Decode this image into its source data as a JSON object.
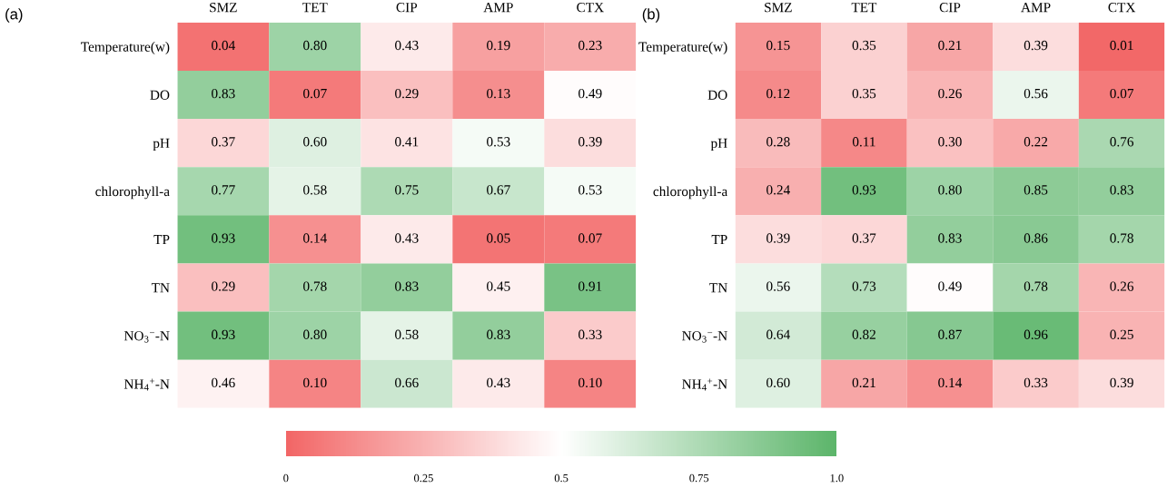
{
  "chart_data": [
    {
      "type": "heatmap",
      "title": "(a)",
      "categories": [
        "SMZ",
        "TET",
        "CIP",
        "AMP",
        "CTX"
      ],
      "y_categories": [
        "Temperature(w)",
        "DO",
        "pH",
        "chlorophyll-a",
        "TP",
        "TN",
        "NO$_{3}$$^{−}$-N",
        "NH$_{4}$$^{+}$-N"
      ],
      "cells": [
        [
          0.04,
          0.8,
          0.43,
          0.19,
          0.23
        ],
        [
          0.83,
          0.07,
          0.29,
          0.13,
          0.49
        ],
        [
          0.37,
          0.6,
          0.41,
          0.53,
          0.39
        ],
        [
          0.77,
          0.58,
          0.75,
          0.67,
          0.53
        ],
        [
          0.93,
          0.14,
          0.43,
          0.05,
          0.07
        ],
        [
          0.29,
          0.78,
          0.83,
          0.45,
          0.91
        ],
        [
          0.93,
          0.8,
          0.58,
          0.83,
          0.33
        ],
        [
          0.46,
          0.1,
          0.66,
          0.43,
          0.1
        ]
      ],
      "cell_labels": [
        [
          "0.04",
          "0.80",
          "0.43",
          "0.19",
          "0.23"
        ],
        [
          "0.83",
          "0.07",
          "0.29",
          "0.13",
          "0.49"
        ],
        [
          "0.37",
          "0.60",
          "0.41",
          "0.53",
          "0.39"
        ],
        [
          "0.77",
          "0.58",
          "0.75",
          "0.67",
          "0.53"
        ],
        [
          "0.93",
          "0.14",
          "0.43",
          "0.05",
          "0.07"
        ],
        [
          "0.29",
          "0.78",
          "0.83",
          "0.45",
          "0.91"
        ],
        [
          "0.93",
          "0.80",
          "0.58",
          "0.83",
          "0.33"
        ],
        [
          "0.46",
          "0.10",
          "0.66",
          "0.43",
          "0.10"
        ]
      ],
      "clim": [
        0,
        1
      ],
      "cticks": [
        0,
        0.25,
        0.5,
        0.75,
        {
          "value": 1,
          "label": "1.0"
        }
      ]
    },
    {
      "type": "heatmap",
      "title": "(b)",
      "categories": [
        "SMZ",
        "TET",
        "CIP",
        "AMP",
        "CTX"
      ],
      "y_categories": [
        "Temperature(w)",
        "DO",
        "pH",
        "chlorophyll-a",
        "TP",
        "TN",
        "NO$_{3}$$^{−}$-N",
        "NH$_{4}$$^{+}$-N"
      ],
      "cells": [
        [
          0.15,
          0.35,
          0.21,
          0.39,
          0.01
        ],
        [
          0.12,
          0.35,
          0.26,
          0.56,
          0.07
        ],
        [
          0.28,
          0.11,
          0.3,
          0.22,
          0.76
        ],
        [
          0.24,
          0.93,
          0.8,
          0.85,
          0.83
        ],
        [
          0.39,
          0.37,
          0.83,
          0.86,
          0.78
        ],
        [
          0.56,
          0.73,
          0.49,
          0.78,
          0.26
        ],
        [
          0.64,
          0.82,
          0.87,
          0.96,
          0.25
        ],
        [
          0.6,
          0.21,
          0.14,
          0.33,
          0.39
        ]
      ],
      "cell_labels": [
        [
          "0.15",
          "0.35",
          "0.21",
          "0.39",
          "0.01"
        ],
        [
          "0.12",
          "0.35",
          "0.26",
          "0.56",
          "0.07"
        ],
        [
          "0.28",
          "0.11",
          "0.30",
          "0.22",
          "0.76"
        ],
        [
          "0.24",
          "0.93",
          "0.80",
          "0.85",
          "0.83"
        ],
        [
          "0.39",
          "0.37",
          "0.83",
          "0.86",
          "0.78"
        ],
        [
          "0.56",
          "0.73",
          "0.49",
          "0.78",
          "0.26"
        ],
        [
          "0.64",
          "0.82",
          "0.87",
          "0.96",
          "0.25"
        ],
        [
          "0.60",
          "0.21",
          "0.14",
          "0.33",
          "0.39"
        ]
      ]
    }
  ]
}
